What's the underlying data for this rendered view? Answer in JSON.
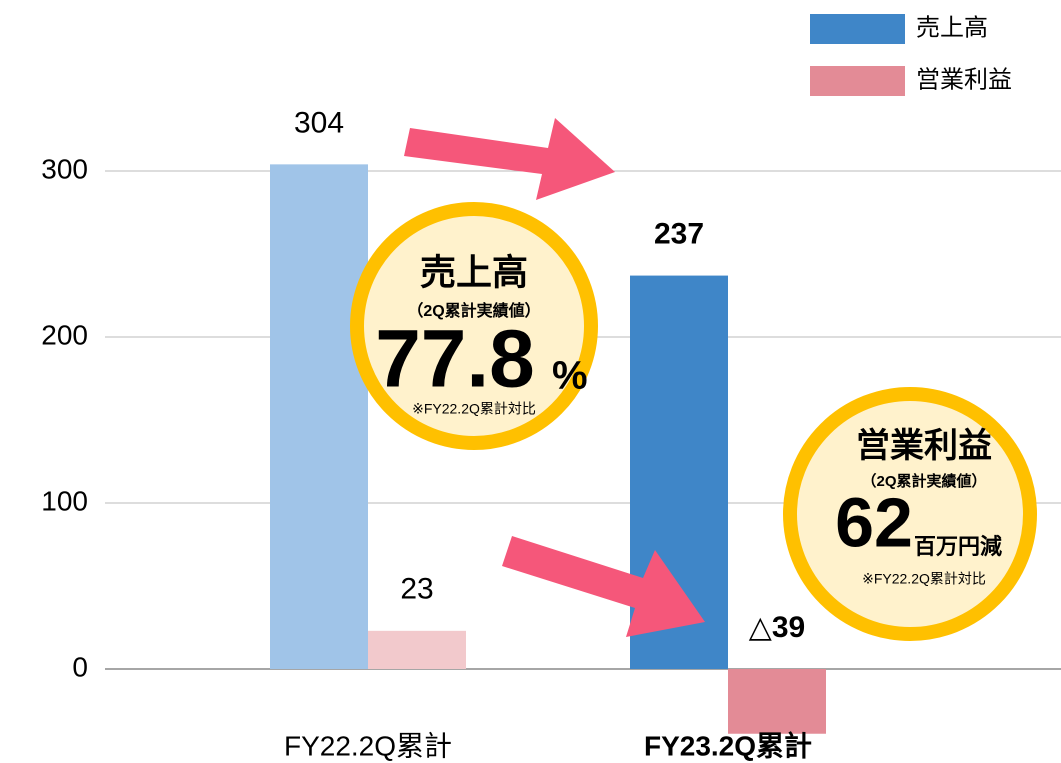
{
  "chart_data": {
    "type": "bar",
    "categories": [
      "FY22.2Q累計",
      "FY23.2Q累計"
    ],
    "highlight": 1,
    "series": [
      {
        "name": "売上高",
        "color": "#3f86c8",
        "colors": [
          "#a0c4e8",
          "#3f86c8"
        ],
        "values": [
          304,
          237
        ]
      },
      {
        "name": "営業利益",
        "color": "#e38b96",
        "colors": [
          "#f2c9cc",
          "#e38b96"
        ],
        "values": [
          23,
          -39
        ],
        "value_labels": [
          "23",
          "△39"
        ]
      }
    ],
    "ylim": [
      -55,
      350
    ],
    "yticks": [
      0,
      100,
      200,
      300
    ],
    "grid": true,
    "legend": "top-right",
    "annotations": [
      {
        "title": "売上高",
        "subtitle": "（2Q累計実績値）",
        "big": "77.8",
        "unit": "%",
        "note": "※FY22.2Q累計対比"
      },
      {
        "title": "営業利益",
        "subtitle": "（2Q累計実績値）",
        "big": "62",
        "unit": "百万円減",
        "note": "※FY22.2Q累計対比"
      }
    ]
  }
}
